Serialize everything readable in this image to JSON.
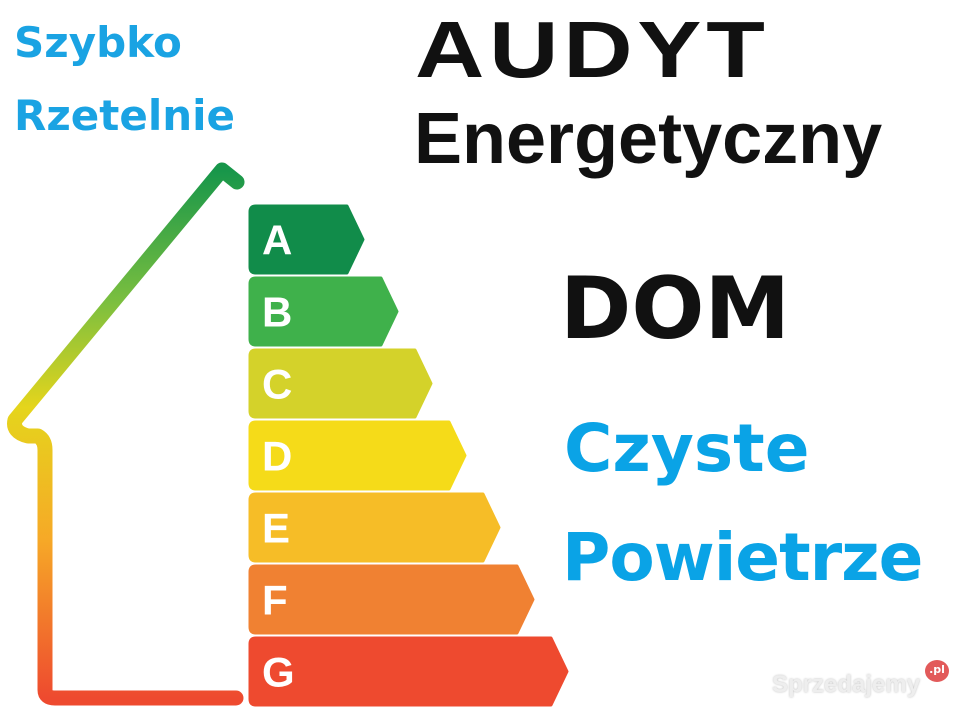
{
  "taglines": [
    "Szybko",
    "Rzetelnie"
  ],
  "title_line1": "AUDYT",
  "title_line2": "Energetyczny",
  "subject": "DOM",
  "program_line1": "Czyste",
  "program_line2": "Powietrze",
  "energy_classes": [
    {
      "label": "A",
      "color": "#118c4a"
    },
    {
      "label": "B",
      "color": "#3fb14b"
    },
    {
      "label": "C",
      "color": "#d4d22a"
    },
    {
      "label": "D",
      "color": "#f5db19"
    },
    {
      "label": "E",
      "color": "#f6bd27"
    },
    {
      "label": "F",
      "color": "#f08132"
    },
    {
      "label": "G",
      "color": "#ee4a2f"
    }
  ],
  "watermark": {
    "text": "Sprzedajemy",
    "badge": ".pl"
  }
}
